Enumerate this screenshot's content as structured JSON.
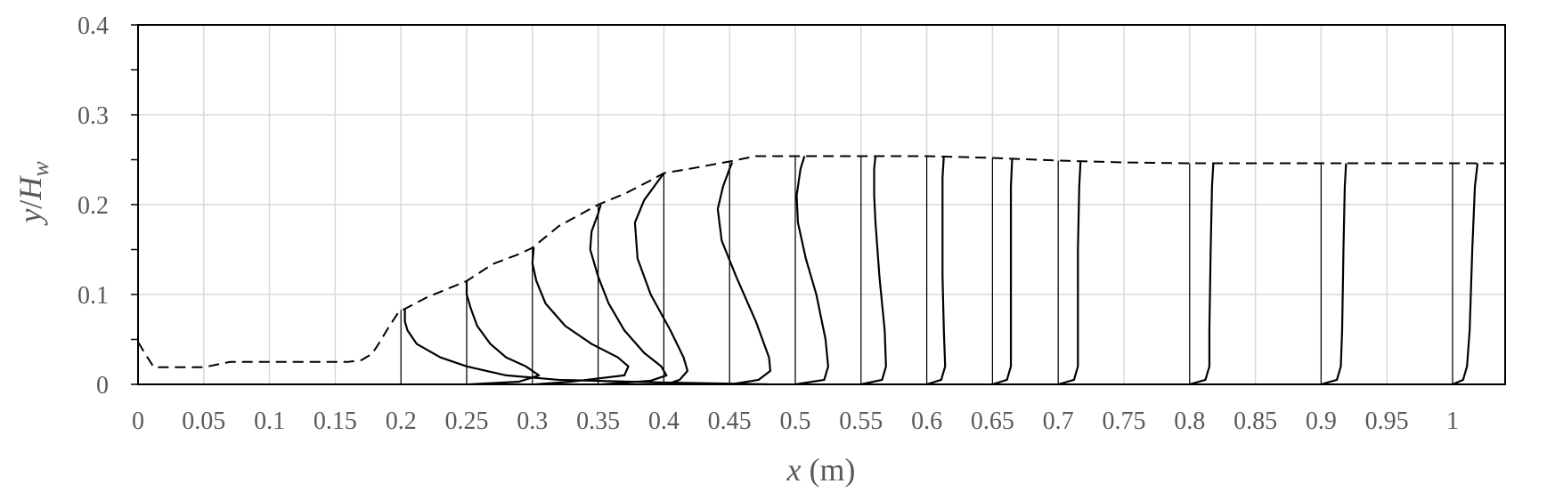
{
  "chart_data": {
    "type": "line",
    "title": "",
    "xlabel": {
      "var": "x",
      "unit": " (m)"
    },
    "ylabel": {
      "y": "y",
      "slash": "/",
      "H": "H",
      "sub": "w"
    },
    "xlim": [
      0,
      1.04
    ],
    "ylim": [
      0,
      0.4
    ],
    "grid": true,
    "x_ticks": [
      "0",
      "0.05",
      "0.1",
      "0.15",
      "0.2",
      "0.25",
      "0.3",
      "0.35",
      "0.4",
      "0.45",
      "0.5",
      "0.55",
      "0.6",
      "0.65",
      "0.7",
      "0.75",
      "0.8",
      "0.85",
      "0.9",
      "0.95",
      "1"
    ],
    "y_ticks": [
      "0",
      "0.1",
      "0.2",
      "0.3",
      "0.4"
    ],
    "series": [
      {
        "style": "dashed",
        "description": "free surface profile",
        "x": [
          0,
          0.005,
          0.012,
          0.03,
          0.05,
          0.06,
          0.07,
          0.08,
          0.1,
          0.12,
          0.14,
          0.16,
          0.17,
          0.178,
          0.183,
          0.19,
          0.198,
          0.203,
          0.22,
          0.25,
          0.27,
          0.29,
          0.3,
          0.32,
          0.35,
          0.37,
          0.39,
          0.4,
          0.42,
          0.45,
          0.47,
          0.5,
          0.55,
          0.6,
          0.65,
          0.7,
          0.75,
          0.8,
          0.85,
          0.9,
          0.95,
          1.0,
          1.04
        ],
        "y": [
          0.047,
          0.035,
          0.019,
          0.019,
          0.019,
          0.022,
          0.025,
          0.025,
          0.025,
          0.025,
          0.025,
          0.025,
          0.027,
          0.034,
          0.045,
          0.062,
          0.08,
          0.084,
          0.097,
          0.115,
          0.134,
          0.145,
          0.152,
          0.176,
          0.2,
          0.212,
          0.227,
          0.235,
          0.24,
          0.248,
          0.254,
          0.254,
          0.254,
          0.254,
          0.252,
          0.249,
          0.247,
          0.246,
          0.246,
          0.246,
          0.246,
          0.246,
          0.246
        ]
      }
    ],
    "velocity_profiles": [
      {
        "x0": 0.2,
        "top": 0.083,
        "u": [
          0.28,
          0.2,
          0.12,
          0.08,
          0.05,
          0.03,
          0.012,
          0.005,
          0.003,
          0.003,
          0.003
        ],
        "y": [
          0.0,
          0.002,
          0.005,
          0.01,
          0.02,
          0.03,
          0.045,
          0.06,
          0.07,
          0.078,
          0.083
        ]
      },
      {
        "x0": 0.25,
        "top": 0.115,
        "u": [
          0.002,
          0.04,
          0.055,
          0.045,
          0.03,
          0.018,
          0.008,
          0.003,
          0.0,
          0.0
        ],
        "y": [
          0.0,
          0.003,
          0.01,
          0.02,
          0.03,
          0.045,
          0.065,
          0.085,
          0.1,
          0.115
        ]
      },
      {
        "x0": 0.3,
        "top": 0.152,
        "u": [
          0.002,
          0.03,
          0.07,
          0.073,
          0.065,
          0.045,
          0.025,
          0.01,
          0.003,
          0.0,
          0.001
        ],
        "y": [
          0.0,
          0.003,
          0.01,
          0.02,
          0.03,
          0.045,
          0.065,
          0.09,
          0.115,
          0.135,
          0.152
        ]
      },
      {
        "x0": 0.35,
        "top": 0.2,
        "u": [
          0.003,
          0.04,
          0.052,
          0.048,
          0.035,
          0.02,
          0.008,
          0.0,
          -0.006,
          -0.005,
          0.0,
          0.002
        ],
        "y": [
          0.0,
          0.004,
          0.01,
          0.02,
          0.035,
          0.06,
          0.09,
          0.12,
          0.15,
          0.17,
          0.19,
          0.2
        ]
      },
      {
        "x0": 0.4,
        "top": 0.235,
        "u": [
          0.002,
          0.012,
          0.018,
          0.015,
          0.005,
          -0.01,
          -0.02,
          -0.022,
          -0.015,
          -0.005,
          0.0
        ],
        "y": [
          0.0,
          0.005,
          0.015,
          0.03,
          0.06,
          0.1,
          0.14,
          0.18,
          0.205,
          0.225,
          0.235
        ]
      },
      {
        "x0": 0.45,
        "top": 0.247,
        "u": [
          0.001,
          0.022,
          0.031,
          0.03,
          0.02,
          0.005,
          -0.006,
          -0.009,
          -0.005,
          0.0,
          0.002
        ],
        "y": [
          0.0,
          0.005,
          0.015,
          0.03,
          0.07,
          0.12,
          0.16,
          0.195,
          0.22,
          0.24,
          0.247
        ]
      },
      {
        "x0": 0.5,
        "top": 0.254,
        "u": [
          0.0,
          0.022,
          0.025,
          0.023,
          0.016,
          0.008,
          0.002,
          0.001,
          0.004,
          0.007
        ],
        "y": [
          0.0,
          0.005,
          0.02,
          0.05,
          0.1,
          0.14,
          0.18,
          0.21,
          0.24,
          0.254
        ]
      },
      {
        "x0": 0.55,
        "top": 0.254,
        "u": [
          0.0,
          0.016,
          0.019,
          0.018,
          0.014,
          0.011,
          0.01,
          0.01,
          0.011
        ],
        "y": [
          0.0,
          0.005,
          0.02,
          0.06,
          0.12,
          0.18,
          0.21,
          0.24,
          0.254
        ]
      },
      {
        "x0": 0.6,
        "top": 0.254,
        "u": [
          0.0,
          0.011,
          0.014,
          0.013,
          0.012,
          0.012,
          0.012,
          0.013
        ],
        "y": [
          0.0,
          0.005,
          0.02,
          0.06,
          0.12,
          0.18,
          0.23,
          0.254
        ]
      },
      {
        "x0": 0.65,
        "top": 0.252,
        "u": [
          0.0,
          0.011,
          0.014,
          0.014,
          0.014,
          0.014,
          0.015
        ],
        "y": [
          0.0,
          0.005,
          0.02,
          0.06,
          0.15,
          0.22,
          0.252
        ]
      },
      {
        "x0": 0.7,
        "top": 0.249,
        "u": [
          0.0,
          0.012,
          0.015,
          0.015,
          0.015,
          0.016,
          0.017
        ],
        "y": [
          0.0,
          0.005,
          0.02,
          0.06,
          0.15,
          0.22,
          0.249
        ]
      },
      {
        "x0": 0.8,
        "top": 0.246,
        "u": [
          0.0,
          0.012,
          0.015,
          0.015,
          0.016,
          0.017,
          0.018
        ],
        "y": [
          0.0,
          0.005,
          0.02,
          0.06,
          0.15,
          0.22,
          0.246
        ]
      },
      {
        "x0": 0.9,
        "top": 0.246,
        "u": [
          0.0,
          0.012,
          0.015,
          0.016,
          0.017,
          0.018,
          0.019
        ],
        "y": [
          0.0,
          0.005,
          0.02,
          0.06,
          0.15,
          0.22,
          0.246
        ]
      },
      {
        "x0": 1.0,
        "top": 0.246,
        "u": [
          0.0,
          0.008,
          0.011,
          0.013,
          0.015,
          0.017,
          0.019
        ],
        "y": [
          0.0,
          0.005,
          0.02,
          0.06,
          0.15,
          0.22,
          0.246
        ]
      }
    ]
  }
}
